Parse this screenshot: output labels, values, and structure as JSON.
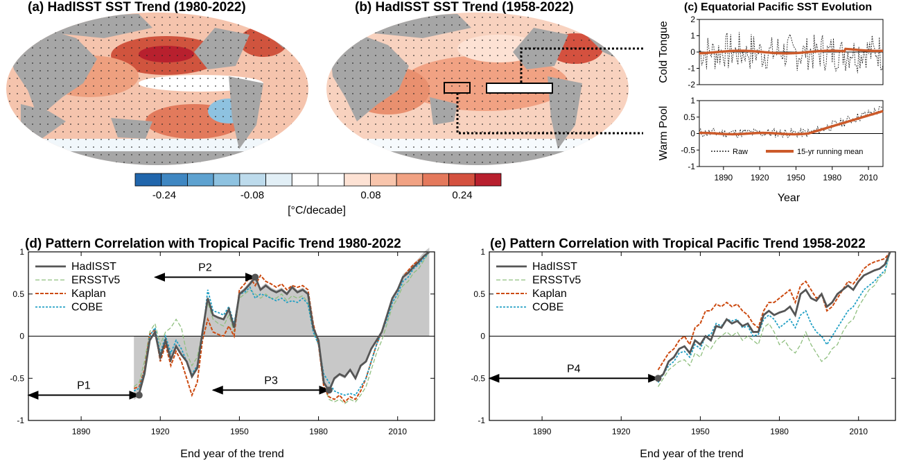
{
  "colors": {
    "hadisst": "#555555",
    "ersst": "#8fbf7f",
    "kaplan": "#cc4a10",
    "cobe": "#1f9fc4",
    "shade": "#c8c8c8",
    "land": "#a6a6a6",
    "running": "#cc5a2a"
  },
  "maps": {
    "a": {
      "title": "(a) HadISST SST Trend (1980-2022)"
    },
    "b": {
      "title": "(b) HadISST SST Trend (1958-2022)"
    }
  },
  "colorbar": {
    "colors": [
      "#2166ac",
      "#3f87c2",
      "#5ea2d0",
      "#8ec2e0",
      "#bddbec",
      "#e2eff6",
      "#ffffff",
      "#ffffff",
      "#fde2d4",
      "#f8c5ac",
      "#f1a283",
      "#e4795c",
      "#d4513f",
      "#b8202e"
    ],
    "tick_labels": [
      "-0.24",
      "-0.08",
      "0.08",
      "0.24"
    ],
    "unit": "[°C/decade]"
  },
  "panel_c": {
    "title": "(c) Equatorial Pacific SST Evolution",
    "top_ylabel": "Cold Tongue",
    "bottom_ylabel": "Warm Pool",
    "xlabel": "Year",
    "top_yticks": [
      "2",
      "1",
      "0",
      "-1",
      "-2"
    ],
    "bottom_yticks": [
      "1",
      "0.5",
      "0",
      "-0.5",
      "-1"
    ],
    "xticks": [
      "1890",
      "1920",
      "1950",
      "1980",
      "2010"
    ],
    "legend": {
      "raw": "Raw",
      "running": "15-yr running mean"
    }
  },
  "chart_data": [
    {
      "type": "line",
      "title": "(d) Pattern Correlation with Tropical Pacific Trend 1980-2022",
      "xlabel": "End year of the trend",
      "ylabel": "",
      "xlim": [
        1870,
        2024
      ],
      "ylim": [
        -1,
        1
      ],
      "xticks": [
        1890,
        1920,
        1950,
        1980,
        2010
      ],
      "yticks": [
        -1,
        -0.5,
        0,
        0.5,
        1
      ],
      "x": [
        1910,
        1912,
        1914,
        1916,
        1918,
        1920,
        1922,
        1924,
        1926,
        1928,
        1930,
        1932,
        1934,
        1936,
        1938,
        1940,
        1942,
        1944,
        1946,
        1948,
        1950,
        1952,
        1954,
        1956,
        1958,
        1960,
        1962,
        1964,
        1966,
        1968,
        1970,
        1972,
        1974,
        1976,
        1978,
        1980,
        1982,
        1984,
        1986,
        1988,
        1990,
        1992,
        1994,
        1996,
        1998,
        2000,
        2002,
        2004,
        2006,
        2008,
        2010,
        2012,
        2014,
        2016,
        2018,
        2020,
        2022
      ],
      "series": [
        {
          "name": "HadISST",
          "values": [
            -0.72,
            -0.68,
            -0.45,
            -0.05,
            0.05,
            -0.25,
            -0.05,
            -0.28,
            -0.12,
            -0.22,
            -0.3,
            -0.48,
            -0.38,
            0.05,
            0.45,
            0.25,
            0.22,
            0.2,
            0.32,
            0.1,
            0.5,
            0.55,
            0.62,
            0.7,
            0.55,
            0.6,
            0.55,
            0.52,
            0.55,
            0.5,
            0.58,
            0.52,
            0.55,
            0.5,
            0.1,
            -0.05,
            -0.55,
            -0.65,
            -0.5,
            -0.45,
            -0.48,
            -0.4,
            -0.5,
            -0.35,
            -0.3,
            -0.15,
            -0.05,
            0.05,
            0.25,
            0.45,
            0.55,
            0.7,
            0.75,
            0.82,
            0.88,
            0.95,
            1.0
          ]
        },
        {
          "name": "ERSSTv5",
          "values": [
            -0.6,
            -0.55,
            -0.3,
            0.05,
            0.15,
            -0.1,
            0.05,
            0.1,
            0.2,
            0.1,
            -0.2,
            -0.35,
            -0.25,
            0.05,
            0.4,
            0.2,
            0.15,
            0.12,
            0.25,
            0.05,
            0.45,
            0.5,
            0.55,
            0.5,
            0.45,
            0.5,
            0.45,
            0.45,
            0.5,
            0.42,
            0.48,
            0.45,
            0.48,
            0.4,
            0.05,
            -0.1,
            -0.6,
            -0.75,
            -0.78,
            -0.75,
            -0.8,
            -0.75,
            -0.78,
            -0.7,
            -0.6,
            -0.4,
            -0.2,
            -0.05,
            0.15,
            0.35,
            0.45,
            0.6,
            0.65,
            0.75,
            0.8,
            0.9,
            1.0
          ]
        },
        {
          "name": "Kaplan",
          "values": [
            -0.62,
            -0.6,
            -0.4,
            0.02,
            0.08,
            -0.3,
            -0.1,
            -0.35,
            -0.18,
            -0.3,
            -0.5,
            -0.7,
            -0.55,
            -0.05,
            0.2,
            0.05,
            0.02,
            0.0,
            0.12,
            0.0,
            0.55,
            0.62,
            0.7,
            0.6,
            0.72,
            0.65,
            0.62,
            0.58,
            0.62,
            0.55,
            0.6,
            0.58,
            0.6,
            0.55,
            0.15,
            -0.1,
            -0.6,
            -0.72,
            -0.75,
            -0.7,
            -0.78,
            -0.72,
            -0.75,
            -0.65,
            -0.5,
            -0.3,
            -0.1,
            0.05,
            0.25,
            0.45,
            0.55,
            0.7,
            0.78,
            0.85,
            0.9,
            0.95,
            1.0
          ]
        },
        {
          "name": "COBE",
          "values": [
            -0.65,
            -0.62,
            -0.42,
            0.0,
            0.1,
            -0.2,
            0.0,
            -0.2,
            -0.05,
            -0.15,
            -0.3,
            -0.45,
            -0.35,
            0.0,
            0.55,
            0.3,
            0.28,
            0.25,
            0.35,
            0.15,
            0.5,
            0.52,
            0.58,
            0.45,
            0.5,
            0.48,
            0.45,
            0.42,
            0.45,
            0.4,
            0.42,
            0.4,
            0.45,
            0.38,
            0.05,
            -0.1,
            -0.45,
            -0.55,
            -0.65,
            -0.68,
            -0.7,
            -0.68,
            -0.7,
            -0.6,
            -0.5,
            -0.3,
            -0.1,
            0.05,
            0.2,
            0.4,
            0.5,
            0.65,
            0.7,
            0.8,
            0.85,
            0.92,
            1.0
          ]
        }
      ],
      "annotations": [
        {
          "label": "P1",
          "x_start": 1870,
          "x_end": 1912,
          "y": -0.7
        },
        {
          "label": "P2",
          "x_start": 1918,
          "x_end": 1956,
          "y": 0.7
        },
        {
          "label": "P3",
          "x_start": 1940,
          "x_end": 1984,
          "y": -0.64
        }
      ]
    },
    {
      "type": "line",
      "title": "(e) Pattern Correlation with Tropical Pacific Trend 1958-2022",
      "xlabel": "End year of the trend",
      "ylabel": "",
      "xlim": [
        1870,
        2024
      ],
      "ylim": [
        -1,
        1
      ],
      "xticks": [
        1890,
        1920,
        1950,
        1980,
        2010
      ],
      "yticks": [
        -1,
        -0.5,
        0,
        0.5,
        1
      ],
      "x": [
        1934,
        1936,
        1938,
        1940,
        1942,
        1944,
        1946,
        1948,
        1950,
        1952,
        1954,
        1956,
        1958,
        1960,
        1962,
        1964,
        1966,
        1968,
        1970,
        1972,
        1974,
        1976,
        1978,
        1980,
        1982,
        1984,
        1986,
        1988,
        1990,
        1992,
        1994,
        1996,
        1998,
        2000,
        2002,
        2004,
        2006,
        2008,
        2010,
        2012,
        2014,
        2016,
        2018,
        2020,
        2022
      ],
      "series": [
        {
          "name": "HadISST",
          "values": [
            -0.5,
            -0.45,
            -0.3,
            -0.25,
            -0.15,
            -0.12,
            -0.2,
            -0.05,
            -0.1,
            0.0,
            -0.05,
            0.12,
            0.1,
            0.2,
            0.15,
            0.18,
            0.12,
            0.15,
            0.05,
            0.05,
            0.25,
            0.3,
            0.25,
            0.28,
            0.3,
            0.35,
            0.25,
            0.5,
            0.55,
            0.45,
            0.42,
            0.5,
            0.35,
            0.4,
            0.5,
            0.55,
            0.6,
            0.55,
            0.65,
            0.72,
            0.75,
            0.78,
            0.8,
            0.85,
            1.0
          ]
        },
        {
          "name": "ERSSTv5",
          "values": [
            -0.6,
            -0.5,
            -0.4,
            -0.35,
            -0.3,
            -0.28,
            -0.35,
            -0.2,
            -0.25,
            -0.1,
            -0.15,
            -0.05,
            0.0,
            0.05,
            0.0,
            0.05,
            -0.05,
            0.0,
            -0.05,
            -0.1,
            0.1,
            0.15,
            0.05,
            -0.1,
            -0.05,
            -0.15,
            -0.2,
            -0.1,
            0.05,
            -0.1,
            -0.2,
            -0.3,
            -0.25,
            -0.15,
            -0.1,
            0.05,
            0.15,
            0.2,
            0.35,
            0.45,
            0.55,
            0.6,
            0.7,
            0.75,
            1.0
          ]
        },
        {
          "name": "Kaplan",
          "values": [
            -0.4,
            -0.3,
            -0.2,
            -0.15,
            -0.05,
            0.0,
            -0.1,
            0.1,
            0.15,
            0.3,
            0.3,
            0.38,
            0.35,
            0.4,
            0.35,
            0.38,
            0.3,
            0.25,
            0.15,
            0.1,
            0.3,
            0.4,
            0.4,
            0.45,
            0.5,
            0.55,
            0.4,
            0.6,
            0.65,
            0.55,
            0.45,
            0.5,
            0.3,
            0.35,
            0.45,
            0.55,
            0.65,
            0.62,
            0.7,
            0.8,
            0.85,
            0.88,
            0.9,
            0.92,
            1.0
          ]
        },
        {
          "name": "COBE",
          "values": [
            -0.55,
            -0.45,
            -0.35,
            -0.3,
            -0.2,
            -0.18,
            -0.25,
            -0.1,
            -0.15,
            0.0,
            0.02,
            0.15,
            0.12,
            0.2,
            0.18,
            0.2,
            0.1,
            0.12,
            0.0,
            0.02,
            0.2,
            0.25,
            0.2,
            0.1,
            0.15,
            0.2,
            0.1,
            0.25,
            0.3,
            0.15,
            0.05,
            0.0,
            -0.1,
            0.0,
            0.1,
            0.2,
            0.3,
            0.35,
            0.45,
            0.55,
            0.6,
            0.65,
            0.72,
            0.78,
            1.0
          ]
        }
      ],
      "annotations": [
        {
          "label": "P4",
          "x_start": 1870,
          "x_end": 1934,
          "y": -0.5
        }
      ]
    }
  ]
}
